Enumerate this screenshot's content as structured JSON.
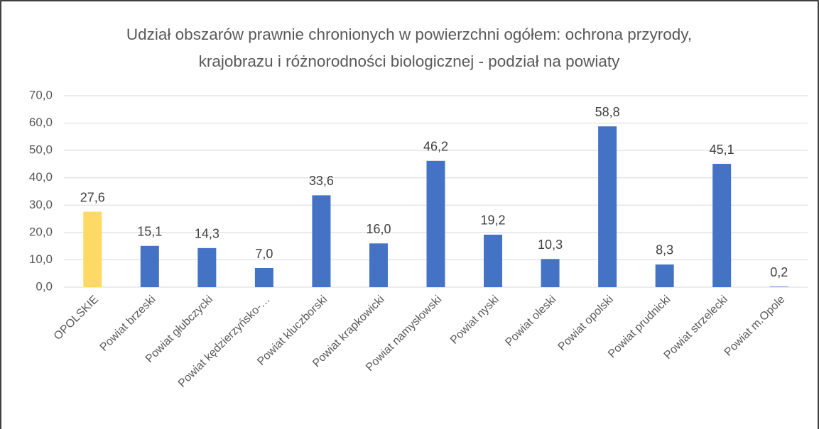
{
  "chart_data": {
    "type": "bar",
    "title": "Udział obszarów prawnie chronionych w powierzchni ogółem: ochrona przyrody, krajobrazu i różnorodności biologicznej - podział na powiaty",
    "categories": [
      "OPOLSKIE",
      "Powiat brzeski",
      "Powiat głubczycki",
      "Powiat kędzierzyńsko-…",
      "Powiat kluczborski",
      "Powiat krapkowicki",
      "Powiat namysłowski",
      "Powiat nyski",
      "Powiat oleski",
      "Powiat opolski",
      "Powiat prudnicki",
      "Powiat strzelecki",
      "Powiat m.Opole"
    ],
    "values": [
      27.6,
      15.1,
      14.3,
      7.0,
      33.6,
      16.0,
      46.2,
      19.2,
      10.3,
      58.8,
      8.3,
      45.1,
      0.2
    ],
    "value_labels": [
      "27,6",
      "15,1",
      "14,3",
      "7,0",
      "33,6",
      "16,0",
      "46,2",
      "19,2",
      "10,3",
      "58,8",
      "8,3",
      "45,1",
      "0,2"
    ],
    "colors": [
      "#ffd966",
      "#4472c4",
      "#4472c4",
      "#4472c4",
      "#4472c4",
      "#4472c4",
      "#4472c4",
      "#4472c4",
      "#4472c4",
      "#4472c4",
      "#4472c4",
      "#4472c4",
      "#4472c4"
    ],
    "ylim": [
      0,
      70
    ],
    "yticks": [
      {
        "value": 0,
        "label": "0,0"
      },
      {
        "value": 10,
        "label": "10,0"
      },
      {
        "value": 20,
        "label": "20,0"
      },
      {
        "value": 30,
        "label": "30,0"
      },
      {
        "value": 40,
        "label": "40,0"
      },
      {
        "value": 50,
        "label": "50,0"
      },
      {
        "value": 60,
        "label": "60,0"
      },
      {
        "value": 70,
        "label": "70,0"
      }
    ],
    "grid": true
  }
}
